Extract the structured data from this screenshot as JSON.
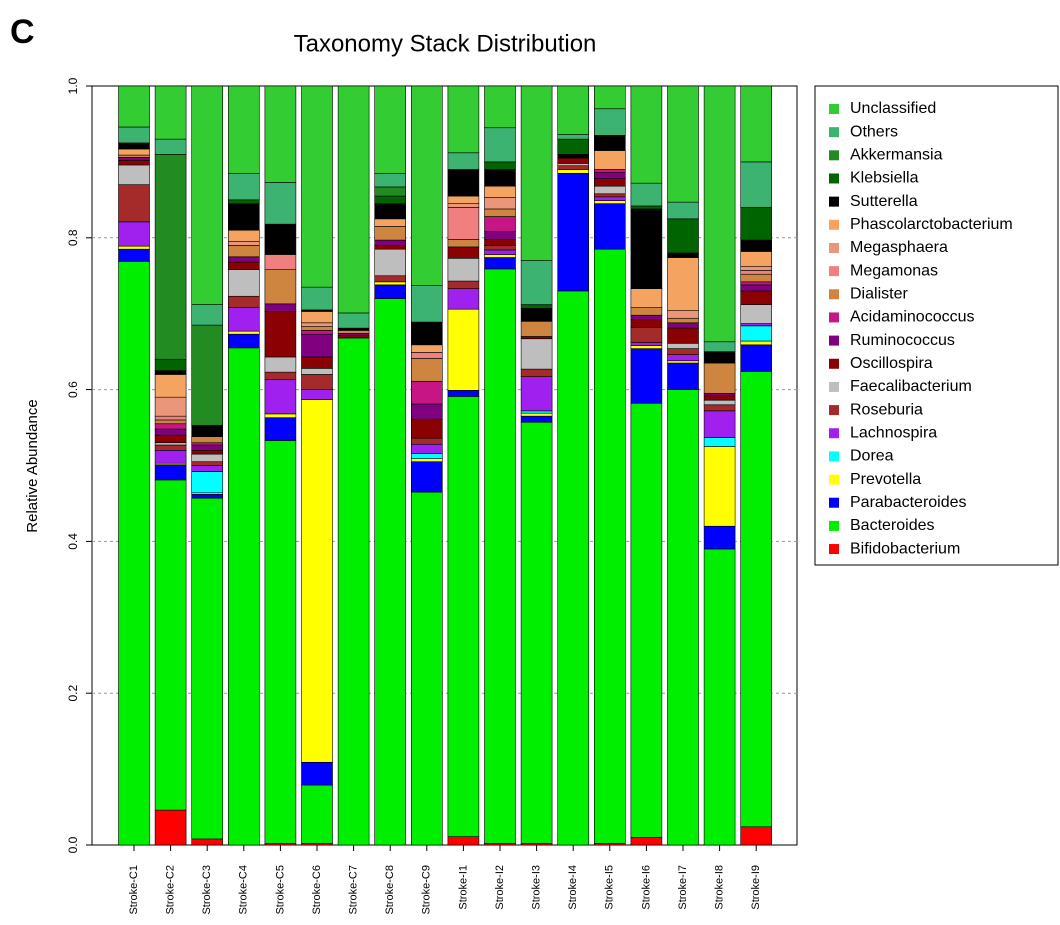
{
  "panel_label": "C",
  "chart_data": {
    "type": "stacked_bar",
    "title": "Taxonomy Stack Distribution",
    "y_label": "Relative Abundance",
    "categories": [
      "Stroke-C1",
      "Stroke-C2",
      "Stroke-C3",
      "Stroke-C4",
      "Stroke-C5",
      "Stroke-C6",
      "Stroke-C7",
      "Stroke-C8",
      "Stroke-C9",
      "Stroke-I1",
      "Stroke-I2",
      "Stroke-I3",
      "Stroke-I4",
      "Stroke-I5",
      "Stroke-I6",
      "Stroke-I7",
      "Stroke-I8",
      "Stroke-I9"
    ],
    "ylim": [
      0,
      1
    ],
    "yticks": [
      {
        "value": 0,
        "label": "0.0"
      },
      0.2,
      0.4,
      0.6,
      0.8,
      {
        "value": 1,
        "label": "1.0"
      }
    ],
    "grid": true,
    "legend": "right",
    "series": [
      {
        "name": "Unclassified",
        "color": "#33cc33",
        "values": [
          0.054,
          0.07,
          0.288,
          0.115,
          0.127,
          0.265,
          0.299,
          0.115,
          0.263,
          0.088,
          0.055,
          0.23,
          0.064,
          0.03,
          0.128,
          0.153,
          0.337,
          0.1
        ]
      },
      {
        "name": "Others",
        "color": "#3cb371",
        "values": [
          0.021,
          0.02,
          0.027,
          0.035,
          0.055,
          0.03,
          0.02,
          0.018,
          0.048,
          0.022,
          0.045,
          0.058,
          0.006,
          0.035,
          0.03,
          0.022,
          0.013,
          0.06
        ]
      },
      {
        "name": "Akkermansia",
        "color": "#228b22",
        "values": [
          0,
          0.27,
          0.132,
          0,
          0,
          0,
          0,
          0.012,
          0,
          0,
          0,
          0,
          0,
          0,
          0,
          0,
          0,
          0
        ]
      },
      {
        "name": "Klebsiella",
        "color": "#006400",
        "values": [
          0,
          0.015,
          0,
          0.005,
          0,
          0,
          0,
          0.01,
          0,
          0,
          0.01,
          0.005,
          0.02,
          0,
          0.004,
          0.045,
          0,
          0.043
        ]
      },
      {
        "name": "Sutterella",
        "color": "#000000",
        "values": [
          0.008,
          0.005,
          0.015,
          0.035,
          0.04,
          0.002,
          0.003,
          0.02,
          0.03,
          0.035,
          0.022,
          0.017,
          0.005,
          0.02,
          0.105,
          0.006,
          0.015,
          0.015
        ]
      },
      {
        "name": "Phascolarctobacterium",
        "color": "#f4a460",
        "values": [
          0.008,
          0.03,
          0,
          0.015,
          0,
          0.015,
          0,
          0.01,
          0.01,
          0.01,
          0.015,
          0,
          0,
          0.025,
          0.025,
          0.07,
          0,
          0.02
        ]
      },
      {
        "name": "Megasphaera",
        "color": "#e9967a",
        "values": [
          0,
          0.025,
          0,
          0.005,
          0,
          0.005,
          0,
          0,
          0,
          0.005,
          0.015,
          0,
          0,
          0,
          0,
          0.01,
          0,
          0.005
        ]
      },
      {
        "name": "Megamonas",
        "color": "#f08080",
        "values": [
          0,
          0.005,
          0,
          0,
          0.02,
          0,
          0,
          0,
          0.008,
          0.042,
          0,
          0,
          0,
          0,
          0,
          0,
          0,
          0.005
        ]
      },
      {
        "name": "Dialister",
        "color": "#cd853f",
        "values": [
          0.003,
          0.005,
          0.008,
          0.015,
          0.045,
          0.005,
          0.004,
          0.018,
          0.03,
          0.01,
          0.01,
          0.02,
          0,
          0,
          0.01,
          0.006,
          0.04,
          0.01
        ]
      },
      {
        "name": "Acidaminococcus",
        "color": "#c71585",
        "values": [
          0,
          0.007,
          0.003,
          0,
          0,
          0.005,
          0,
          0,
          0.03,
          0,
          0.02,
          0,
          0,
          0.004,
          0,
          0,
          0,
          0.004
        ]
      },
      {
        "name": "Ruminococcus",
        "color": "#800080",
        "values": [
          0.004,
          0.008,
          0.007,
          0.007,
          0.01,
          0.03,
          0.003,
          0.007,
          0.02,
          0,
          0.01,
          0,
          0,
          0.008,
          0.006,
          0.007,
          0.003,
          0.008
        ]
      },
      {
        "name": "Oscillospira",
        "color": "#8b0000",
        "values": [
          0.006,
          0.01,
          0.005,
          0.01,
          0.06,
          0.015,
          0.003,
          0.005,
          0.025,
          0.015,
          0.008,
          0.003,
          0.007,
          0.01,
          0.01,
          0.02,
          0.006,
          0.018
        ]
      },
      {
        "name": "Faecalibacterium",
        "color": "#bebebe",
        "values": [
          0.026,
          0.003,
          0.01,
          0.035,
          0.02,
          0.008,
          0,
          0.035,
          0,
          0.03,
          0,
          0.04,
          0.003,
          0.01,
          0,
          0.007,
          0.006,
          0.025
        ]
      },
      {
        "name": "Roseburia",
        "color": "#a52a2a",
        "values": [
          0.049,
          0.007,
          0.005,
          0.015,
          0.01,
          0.02,
          0,
          0.008,
          0.008,
          0.01,
          0.006,
          0.01,
          0.005,
          0.004,
          0.02,
          0.008,
          0.008,
          0
        ]
      },
      {
        "name": "Lachnospira",
        "color": "#a020f0",
        "values": [
          0.032,
          0.017,
          0.008,
          0.031,
          0.045,
          0.013,
          0,
          0,
          0.012,
          0.027,
          0.006,
          0.045,
          0,
          0.005,
          0.004,
          0.008,
          0.035,
          0.003
        ]
      },
      {
        "name": "Dorea",
        "color": "#00ffff",
        "values": [
          0,
          0,
          0.028,
          0,
          0,
          0,
          0,
          0,
          0.007,
          0,
          0,
          0.003,
          0,
          0,
          0,
          0,
          0.012,
          0.02
        ]
      },
      {
        "name": "Prevotella",
        "color": "#ffff00",
        "values": [
          0.004,
          0.002,
          0.002,
          0.004,
          0.005,
          0.478,
          0,
          0.004,
          0.004,
          0.107,
          0.004,
          0.004,
          0.005,
          0.004,
          0.004,
          0.003,
          0.105,
          0.005
        ]
      },
      {
        "name": "Parabacteroides",
        "color": "#0000ff",
        "values": [
          0.016,
          0.02,
          0.005,
          0.018,
          0.03,
          0.03,
          0,
          0.018,
          0.04,
          0.008,
          0.015,
          0.008,
          0.155,
          0.06,
          0.072,
          0.035,
          0.03,
          0.035
        ]
      },
      {
        "name": "Bacteroides",
        "color": "#00ee00",
        "values": [
          0.769,
          0.435,
          0.449,
          0.655,
          0.531,
          0.077,
          0.668,
          0.72,
          0.465,
          0.58,
          0.757,
          0.555,
          0.73,
          0.783,
          0.572,
          0.6,
          0.39,
          0.6
        ]
      },
      {
        "name": "Bifidobacterium",
        "color": "#ff0000",
        "values": [
          0,
          0.046,
          0.008,
          0,
          0.002,
          0.002,
          0,
          0,
          0,
          0.011,
          0.002,
          0.002,
          0,
          0.002,
          0.01,
          0,
          0,
          0.024
        ]
      }
    ]
  }
}
